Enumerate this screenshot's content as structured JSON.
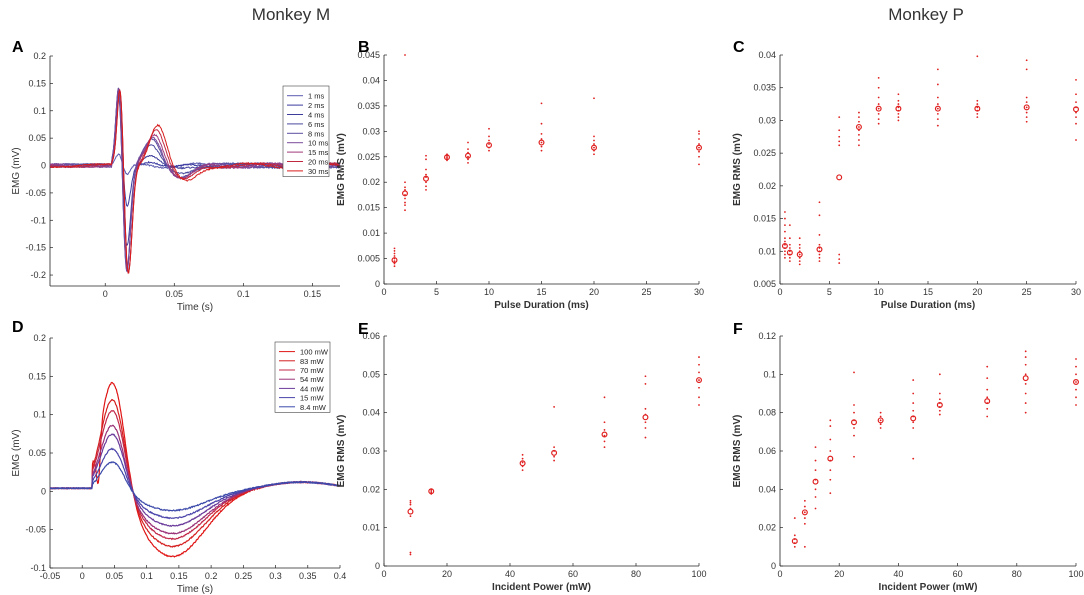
{
  "column_titles": [
    "Monkey M",
    "Monkey P"
  ],
  "chart_data": [
    {
      "id": "A",
      "type": "line",
      "panel_label": "A",
      "xlabel": "Time (s)",
      "ylabel": "EMG (mV)",
      "xlim": [
        -0.04,
        0.17
      ],
      "ylim": [
        -0.22,
        0.2
      ],
      "xticks": [
        0,
        0.05,
        0.1,
        0.15
      ],
      "yticks": [
        -0.2,
        -0.15,
        -0.1,
        -0.05,
        0,
        0.05,
        0.1,
        0.15,
        0.2
      ],
      "series": [
        {
          "name": "1 ms",
          "color": "#5a5ab0",
          "peak_time": 0.011,
          "pos": 0.02,
          "neg": -0.02,
          "late": 0.003,
          "late_time": 0.03
        },
        {
          "name": "2 ms",
          "color": "#3a3aa0",
          "peak_time": 0.011,
          "pos": 0.13,
          "neg": -0.08,
          "late": 0.01,
          "late_time": 0.032
        },
        {
          "name": "4 ms",
          "color": "#3c3c9c",
          "peak_time": 0.011,
          "pos": 0.16,
          "neg": -0.15,
          "late": 0.02,
          "late_time": 0.032
        },
        {
          "name": "6 ms",
          "color": "#4a4a9e",
          "peak_time": 0.011,
          "pos": 0.16,
          "neg": -0.19,
          "late": 0.035,
          "late_time": 0.033
        },
        {
          "name": "8 ms",
          "color": "#5a4fa0",
          "peak_time": 0.011,
          "pos": 0.165,
          "neg": -0.2,
          "late": 0.045,
          "late_time": 0.034
        },
        {
          "name": "10 ms",
          "color": "#7a4a9a",
          "peak_time": 0.011,
          "pos": 0.165,
          "neg": -0.2,
          "late": 0.05,
          "late_time": 0.035
        },
        {
          "name": "15 ms",
          "color": "#a03a7a",
          "peak_time": 0.012,
          "pos": 0.16,
          "neg": -0.205,
          "late": 0.06,
          "late_time": 0.036
        },
        {
          "name": "20 ms",
          "color": "#c02840",
          "peak_time": 0.012,
          "pos": 0.16,
          "neg": -0.205,
          "late": 0.07,
          "late_time": 0.037
        },
        {
          "name": "30 ms",
          "color": "#d81c1c",
          "peak_time": 0.012,
          "pos": 0.16,
          "neg": -0.2,
          "late": 0.075,
          "late_time": 0.038
        }
      ]
    },
    {
      "id": "B",
      "type": "scatter",
      "panel_label": "B",
      "xlabel": "Pulse Duration (ms)",
      "ylabel": "EMG RMS (mV)",
      "xlim": [
        0,
        30
      ],
      "ylim": [
        0,
        0.045
      ],
      "xticks": [
        0,
        5,
        10,
        15,
        20,
        25,
        30
      ],
      "yticks": [
        0,
        0.005,
        0.01,
        0.015,
        0.02,
        0.025,
        0.03,
        0.035,
        0.04,
        0.045
      ],
      "x": [
        1,
        2,
        4,
        6,
        8,
        10,
        15,
        20,
        30
      ],
      "mean": [
        0.0047,
        0.0178,
        0.0207,
        0.0249,
        0.0252,
        0.0273,
        0.0278,
        0.0268,
        0.0268
      ],
      "points": [
        [
          0.0035,
          0.004,
          0.0045,
          0.005,
          0.0055,
          0.006,
          0.0065,
          0.007
        ],
        [
          0.0145,
          0.0155,
          0.016,
          0.0168,
          0.0175,
          0.0185,
          0.019,
          0.02,
          0.045
        ],
        [
          0.0185,
          0.0192,
          0.02,
          0.021,
          0.0215,
          0.0225,
          0.0245,
          0.0252
        ],
        [
          0.0243,
          0.0246,
          0.0249,
          0.0252,
          0.0255
        ],
        [
          0.0238,
          0.0245,
          0.025,
          0.0258,
          0.0265,
          0.0278
        ],
        [
          0.0262,
          0.0268,
          0.0275,
          0.0282,
          0.029,
          0.0305
        ],
        [
          0.0262,
          0.027,
          0.0278,
          0.0285,
          0.0295,
          0.0315,
          0.0355
        ],
        [
          0.0255,
          0.0262,
          0.0268,
          0.0275,
          0.0282,
          0.029,
          0.0365
        ],
        [
          0.0235,
          0.025,
          0.026,
          0.0268,
          0.0275,
          0.0285,
          0.0295,
          0.03
        ]
      ]
    },
    {
      "id": "C",
      "type": "scatter",
      "panel_label": "C",
      "xlabel": "Pulse Duration (ms)",
      "ylabel": "EMG RMS (mV)",
      "xlim": [
        0,
        30
      ],
      "ylim": [
        0.005,
        0.04
      ],
      "xticks": [
        0,
        5,
        10,
        15,
        20,
        25,
        30
      ],
      "yticks": [
        0.005,
        0.01,
        0.015,
        0.02,
        0.025,
        0.03,
        0.035,
        0.04
      ],
      "x": [
        0.5,
        1,
        2,
        4,
        6,
        8,
        10,
        12,
        16,
        20,
        25,
        30
      ],
      "mean": [
        0.0108,
        0.0098,
        0.0095,
        0.0103,
        0.0213,
        0.029,
        0.0318,
        0.0318,
        0.0318,
        0.0318,
        0.032,
        0.0317
      ],
      "points": [
        [
          0.009,
          0.0095,
          0.01,
          0.0105,
          0.011,
          0.0115,
          0.012,
          0.013,
          0.014,
          0.015,
          0.016
        ],
        [
          0.0085,
          0.009,
          0.0095,
          0.01,
          0.0105,
          0.011,
          0.012,
          0.014
        ],
        [
          0.008,
          0.0085,
          0.009,
          0.0095,
          0.01,
          0.0105,
          0.011,
          0.012
        ],
        [
          0.0085,
          0.009,
          0.0095,
          0.01,
          0.0105,
          0.011,
          0.0125,
          0.0155,
          0.0175
        ],
        [
          0.0082,
          0.0088,
          0.0095,
          0.0262,
          0.0268,
          0.0275,
          0.0285,
          0.0305
        ],
        [
          0.0262,
          0.027,
          0.0278,
          0.0285,
          0.029,
          0.0298,
          0.0305,
          0.0312
        ],
        [
          0.0295,
          0.0302,
          0.031,
          0.0318,
          0.0325,
          0.0335,
          0.035,
          0.0365
        ],
        [
          0.03,
          0.0305,
          0.031,
          0.0315,
          0.032,
          0.0325,
          0.033,
          0.034
        ],
        [
          0.0292,
          0.0302,
          0.031,
          0.0318,
          0.0325,
          0.0335,
          0.0355,
          0.0378
        ],
        [
          0.0305,
          0.031,
          0.0315,
          0.032,
          0.0325,
          0.033,
          0.0398
        ],
        [
          0.0298,
          0.0305,
          0.0312,
          0.032,
          0.0328,
          0.0335,
          0.0378,
          0.0392
        ],
        [
          0.027,
          0.0295,
          0.0305,
          0.0312,
          0.032,
          0.0328,
          0.034,
          0.0362
        ]
      ]
    },
    {
      "id": "D",
      "type": "line",
      "panel_label": "D",
      "xlabel": "Time (s)",
      "ylabel": "EMG (mV)",
      "xlim": [
        -0.05,
        0.4
      ],
      "ylim": [
        -0.1,
        0.2
      ],
      "xticks": [
        -0.05,
        0,
        0.05,
        0.1,
        0.15,
        0.2,
        0.25,
        0.3,
        0.35,
        0.4
      ],
      "yticks": [
        -0.1,
        -0.05,
        0,
        0.05,
        0.1,
        0.15,
        0.2
      ],
      "series": [
        {
          "name": "100 mW",
          "color": "#e01414",
          "pos": 0.148,
          "neg": -0.085
        },
        {
          "name": "83 mW",
          "color": "#d42020",
          "pos": 0.125,
          "neg": -0.072
        },
        {
          "name": "70 mW",
          "color": "#c2284a",
          "pos": 0.11,
          "neg": -0.062
        },
        {
          "name": "54 mW",
          "color": "#9a3278",
          "pos": 0.09,
          "neg": -0.055
        },
        {
          "name": "44 mW",
          "color": "#6a3a9a",
          "pos": 0.078,
          "neg": -0.045
        },
        {
          "name": "15 mW",
          "color": "#4a44aa",
          "pos": 0.058,
          "neg": -0.035
        },
        {
          "name": "8.4 mW",
          "color": "#3c4aaa",
          "pos": 0.04,
          "neg": -0.025
        }
      ]
    },
    {
      "id": "E",
      "type": "scatter",
      "panel_label": "E",
      "xlabel": "Incident Power (mW)",
      "ylabel": "EMG RMS (mV)",
      "xlim": [
        0,
        100
      ],
      "ylim": [
        0,
        0.06
      ],
      "xticks": [
        0,
        20,
        40,
        60,
        80,
        100
      ],
      "yticks": [
        0,
        0.01,
        0.02,
        0.03,
        0.04,
        0.05,
        0.06
      ],
      "x": [
        8.4,
        15,
        44,
        54,
        70,
        83,
        100
      ],
      "mean": [
        0.0142,
        0.0195,
        0.0268,
        0.0295,
        0.0343,
        0.0388,
        0.0485
      ],
      "points": [
        [
          0.003,
          0.0035,
          0.013,
          0.015,
          0.016,
          0.0165,
          0.017
        ],
        [
          0.0188,
          0.0192,
          0.0196,
          0.02
        ],
        [
          0.025,
          0.026,
          0.027,
          0.028,
          0.029
        ],
        [
          0.0275,
          0.0285,
          0.03,
          0.031,
          0.0415
        ],
        [
          0.031,
          0.0325,
          0.034,
          0.0355,
          0.0375,
          0.044
        ],
        [
          0.0335,
          0.036,
          0.0375,
          0.0395,
          0.041,
          0.0475,
          0.0495
        ],
        [
          0.042,
          0.044,
          0.0465,
          0.0485,
          0.0505,
          0.0525,
          0.0545
        ]
      ]
    },
    {
      "id": "F",
      "type": "scatter",
      "panel_label": "F",
      "xlabel": "Incident Power (mW)",
      "ylabel": "EMG RMS (mV)",
      "xlim": [
        0,
        100
      ],
      "ylim": [
        0,
        0.12
      ],
      "xticks": [
        0,
        20,
        40,
        60,
        80,
        100
      ],
      "yticks": [
        0,
        0.02,
        0.04,
        0.06,
        0.08,
        0.1,
        0.12
      ],
      "x": [
        5,
        8.4,
        12,
        17,
        25,
        34,
        45,
        54,
        70,
        83,
        100
      ],
      "mean": [
        0.013,
        0.028,
        0.044,
        0.056,
        0.075,
        0.076,
        0.077,
        0.084,
        0.086,
        0.098,
        0.096
      ],
      "points": [
        [
          0.01,
          0.012,
          0.014,
          0.016,
          0.025
        ],
        [
          0.01,
          0.022,
          0.025,
          0.028,
          0.031,
          0.034
        ],
        [
          0.03,
          0.036,
          0.04,
          0.045,
          0.05,
          0.055,
          0.062
        ],
        [
          0.038,
          0.045,
          0.05,
          0.055,
          0.06,
          0.066,
          0.073,
          0.076
        ],
        [
          0.057,
          0.068,
          0.072,
          0.076,
          0.08,
          0.084,
          0.101
        ],
        [
          0.072,
          0.074,
          0.076,
          0.078,
          0.08
        ],
        [
          0.056,
          0.072,
          0.075,
          0.078,
          0.081,
          0.085,
          0.09,
          0.097
        ],
        [
          0.079,
          0.081,
          0.083,
          0.085,
          0.087,
          0.09,
          0.1
        ],
        [
          0.078,
          0.082,
          0.085,
          0.088,
          0.092,
          0.098,
          0.104
        ],
        [
          0.08,
          0.085,
          0.09,
          0.095,
          0.1,
          0.105,
          0.109,
          0.112
        ],
        [
          0.084,
          0.088,
          0.092,
          0.096,
          0.1,
          0.104,
          0.108
        ]
      ]
    }
  ]
}
